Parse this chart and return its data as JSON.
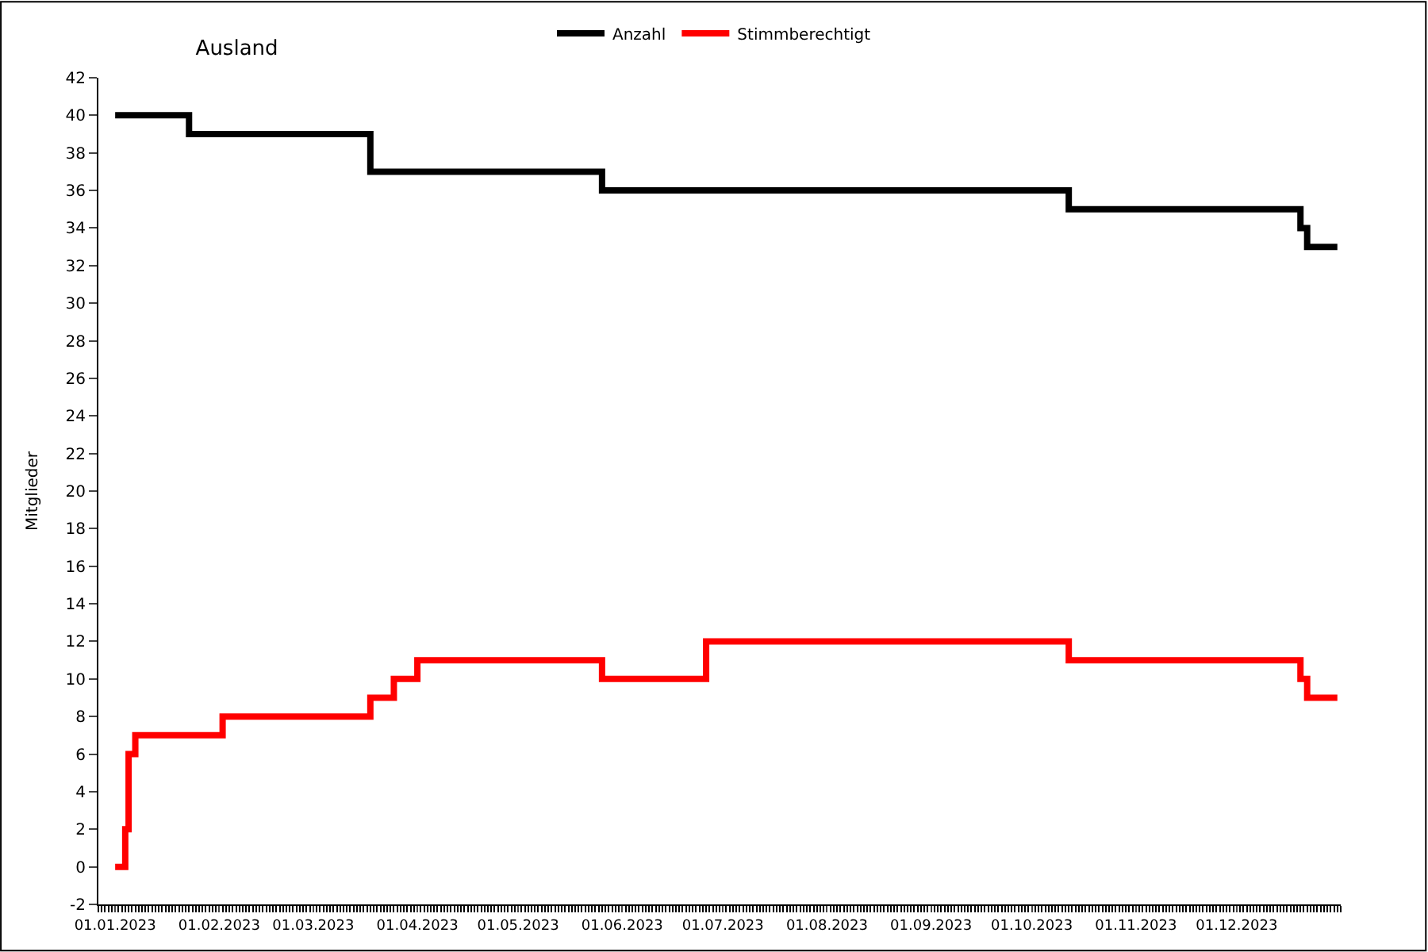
{
  "chart_data": {
    "type": "step",
    "title": "Ausland",
    "ylabel": "Mitglieder",
    "series": [
      {
        "name": "Anzahl",
        "color": "#000000",
        "x": [
          "2023-01-01",
          "2023-01-23",
          "2023-03-18",
          "2023-05-26",
          "2023-10-12",
          "2023-12-20",
          "2023-12-22",
          "2023-12-31"
        ],
        "values": [
          40,
          39,
          37,
          36,
          35,
          34,
          33,
          33
        ]
      },
      {
        "name": "Stimmberechtigt",
        "color": "#ff0000",
        "x": [
          "2023-01-01",
          "2023-01-04",
          "2023-01-05",
          "2023-01-07",
          "2023-02-02",
          "2023-03-18",
          "2023-03-25",
          "2023-04-01",
          "2023-05-26",
          "2023-06-26",
          "2023-10-12",
          "2023-12-20",
          "2023-12-22",
          "2023-12-31"
        ],
        "values": [
          0,
          2,
          6,
          7,
          8,
          9,
          10,
          11,
          10,
          12,
          11,
          10,
          9,
          9
        ]
      }
    ],
    "xlim": [
      "2022-12-27",
      "2024-01-01"
    ],
    "xticks": [
      {
        "value": "2023-01-01",
        "label": "01.01.2023"
      },
      {
        "value": "2023-02-01",
        "label": "01.02.2023"
      },
      {
        "value": "2023-03-01",
        "label": "01.03.2023"
      },
      {
        "value": "2023-04-01",
        "label": "01.04.2023"
      },
      {
        "value": "2023-05-01",
        "label": "01.05.2023"
      },
      {
        "value": "2023-06-01",
        "label": "01.06.2023"
      },
      {
        "value": "2023-07-01",
        "label": "01.07.2023"
      },
      {
        "value": "2023-08-01",
        "label": "01.08.2023"
      },
      {
        "value": "2023-09-01",
        "label": "01.09.2023"
      },
      {
        "value": "2023-10-01",
        "label": "01.10.2023"
      },
      {
        "value": "2023-11-01",
        "label": "01.11.2023"
      },
      {
        "value": "2023-12-01",
        "label": "01.12.2023"
      }
    ],
    "ylim": [
      -2,
      42
    ],
    "yticks": [
      -2,
      0,
      2,
      4,
      6,
      8,
      10,
      12,
      14,
      16,
      18,
      20,
      22,
      24,
      26,
      28,
      30,
      32,
      34,
      36,
      38,
      40,
      42
    ],
    "legend": "top",
    "line_style": "solid",
    "marker": "none"
  }
}
